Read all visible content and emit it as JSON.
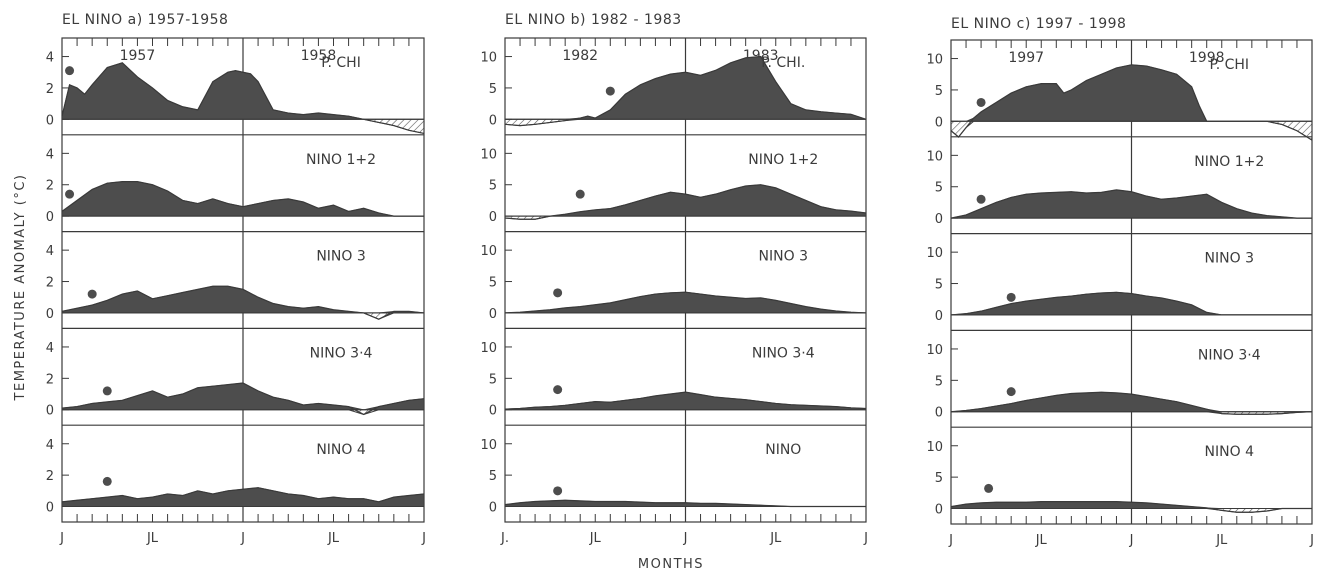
{
  "figure": {
    "ylabel": "TEMPERATURE ANOMALY (°C)",
    "xlabel": "MONTHS",
    "colors": {
      "fill": "#4d4d4d",
      "line": "#3a3a3a",
      "hatch": "#555555"
    }
  },
  "chart_data": [
    {
      "type": "area",
      "title": "EL NINO  a) 1957-1958",
      "years": [
        "1957",
        "1958"
      ],
      "x_tick_labels": [
        "J",
        "JL",
        "J",
        "JL",
        "J"
      ],
      "x_months": 24,
      "ylim": [
        0,
        4
      ],
      "y_ticks": [
        "0",
        "2",
        "4"
      ],
      "panel_top_value": 4.8,
      "series": [
        {
          "name": "P. CHI",
          "label": "P. CHI",
          "dot": [
            0.5,
            3.1
          ],
          "x": [
            0,
            0.5,
            1,
            1.5,
            2,
            3,
            4,
            5,
            6,
            7,
            8,
            9,
            10,
            11,
            11.5,
            12,
            12.5,
            13,
            14,
            15,
            16,
            17,
            18,
            19,
            20,
            21,
            22,
            23,
            24
          ],
          "y": [
            0.2,
            2.2,
            2.0,
            1.6,
            2.2,
            3.3,
            3.6,
            2.7,
            2.0,
            1.2,
            0.8,
            0.6,
            2.4,
            3.0,
            3.1,
            3.0,
            2.9,
            2.4,
            0.6,
            0.4,
            0.3,
            0.4,
            0.3,
            0.2,
            0,
            -0.2,
            -0.4,
            -0.7,
            -0.9
          ]
        },
        {
          "name": "NINO 1+2",
          "label": "NINO 1+2",
          "dot": [
            0.5,
            1.4
          ],
          "x": [
            0,
            1,
            2,
            3,
            4,
            5,
            6,
            7,
            8,
            9,
            10,
            11,
            12,
            13,
            14,
            15,
            16,
            17,
            18,
            19,
            20,
            21,
            22,
            23,
            24
          ],
          "y": [
            0.3,
            1.0,
            1.7,
            2.1,
            2.2,
            2.2,
            2.0,
            1.6,
            1.0,
            0.8,
            1.1,
            0.8,
            0.6,
            0.8,
            1.0,
            1.1,
            0.9,
            0.5,
            0.7,
            0.3,
            0.5,
            0.2,
            0,
            0,
            0
          ]
        },
        {
          "name": "NINO 3",
          "label": "NINO 3",
          "dot": [
            2,
            1.2
          ],
          "x": [
            0,
            1,
            2,
            3,
            4,
            5,
            6,
            7,
            8,
            9,
            10,
            11,
            12,
            13,
            14,
            15,
            16,
            17,
            18,
            19,
            20,
            21,
            22,
            23,
            24
          ],
          "y": [
            0.1,
            0.3,
            0.5,
            0.8,
            1.2,
            1.4,
            0.9,
            1.1,
            1.3,
            1.5,
            1.7,
            1.7,
            1.5,
            1.0,
            0.6,
            0.4,
            0.3,
            0.4,
            0.2,
            0.1,
            0.0,
            -0.4,
            0.1,
            0.1,
            0.0
          ]
        },
        {
          "name": "NINO 3·4",
          "label": "NINO 3·4",
          "dot": [
            3,
            1.2
          ],
          "x": [
            0,
            1,
            2,
            3,
            4,
            5,
            6,
            7,
            8,
            9,
            10,
            11,
            12,
            13,
            14,
            15,
            16,
            17,
            18,
            19,
            20,
            21,
            22,
            23,
            24
          ],
          "y": [
            0.1,
            0.2,
            0.4,
            0.5,
            0.6,
            0.9,
            1.2,
            0.8,
            1.0,
            1.4,
            1.5,
            1.6,
            1.7,
            1.2,
            0.8,
            0.6,
            0.3,
            0.4,
            0.3,
            0.2,
            -0.3,
            0.2,
            0.4,
            0.6,
            0.7
          ]
        },
        {
          "name": "NINO 4",
          "label": "NINO 4",
          "dot": [
            3,
            1.6
          ],
          "x": [
            0,
            1,
            2,
            3,
            4,
            5,
            6,
            7,
            8,
            9,
            10,
            11,
            12,
            13,
            14,
            15,
            16,
            17,
            18,
            19,
            20,
            21,
            22,
            23,
            24
          ],
          "y": [
            0.3,
            0.4,
            0.5,
            0.6,
            0.7,
            0.5,
            0.6,
            0.8,
            0.7,
            1.0,
            0.8,
            1.0,
            1.1,
            1.2,
            1.0,
            0.8,
            0.7,
            0.5,
            0.6,
            0.5,
            0.5,
            0.3,
            0.6,
            0.7,
            0.8
          ]
        }
      ]
    },
    {
      "type": "area",
      "title": "EL NINO  b) 1982 - 1983",
      "years": [
        "1982",
        "1983"
      ],
      "x_tick_labels": [
        "J.",
        "JL",
        "J",
        "JL",
        "J"
      ],
      "x_months": 24,
      "ylim": [
        0,
        10
      ],
      "y_ticks": [
        "0",
        "5",
        "10"
      ],
      "panel_top_value": 12,
      "series": [
        {
          "name": "P. CHI.",
          "label": "P. CHI.",
          "dot": [
            7,
            4.5
          ],
          "x": [
            0,
            1,
            2,
            3,
            4,
            5,
            5.5,
            6,
            7,
            8,
            9,
            10,
            11,
            12,
            13,
            14,
            15,
            16,
            17,
            18,
            19,
            20,
            21,
            22,
            23,
            24
          ],
          "y": [
            -0.8,
            -1.0,
            -0.8,
            -0.5,
            -0.2,
            0.2,
            0.5,
            0.2,
            1.5,
            4.0,
            5.5,
            6.5,
            7.2,
            7.5,
            7.0,
            7.8,
            9.0,
            9.8,
            10.0,
            6.0,
            2.5,
            1.5,
            1.2,
            1.0,
            0.8,
            0.0
          ]
        },
        {
          "name": "NINO 1+2",
          "label": "NINO 1+2",
          "dot": [
            5,
            3.5
          ],
          "x": [
            0,
            1,
            2,
            3,
            4,
            5,
            6,
            7,
            8,
            9,
            10,
            11,
            12,
            13,
            14,
            15,
            16,
            17,
            18,
            19,
            20,
            21,
            22,
            23,
            24
          ],
          "y": [
            -0.3,
            -0.5,
            -0.5,
            0.0,
            0.3,
            0.7,
            1.0,
            1.2,
            1.8,
            2.5,
            3.2,
            3.8,
            3.5,
            3.0,
            3.5,
            4.2,
            4.8,
            5.0,
            4.5,
            3.5,
            2.5,
            1.5,
            1.0,
            0.8,
            0.5
          ]
        },
        {
          "name": "NINO 3",
          "label": "NINO 3",
          "dot": [
            3.5,
            3.2
          ],
          "x": [
            0,
            1,
            2,
            3,
            4,
            5,
            6,
            7,
            8,
            9,
            10,
            11,
            12,
            13,
            14,
            15,
            16,
            17,
            18,
            19,
            20,
            21,
            22,
            23,
            24
          ],
          "y": [
            0.0,
            0.1,
            0.3,
            0.5,
            0.8,
            1.0,
            1.3,
            1.6,
            2.1,
            2.6,
            3.0,
            3.2,
            3.3,
            3.0,
            2.7,
            2.5,
            2.3,
            2.4,
            2.0,
            1.5,
            1.0,
            0.6,
            0.3,
            0.1,
            0.0
          ]
        },
        {
          "name": "NINO 3·4",
          "label": "NINO 3·4",
          "dot": [
            3.5,
            3.2
          ],
          "x": [
            0,
            1,
            2,
            3,
            4,
            5,
            6,
            7,
            8,
            9,
            10,
            11,
            12,
            13,
            14,
            15,
            16,
            17,
            18,
            19,
            20,
            21,
            22,
            23,
            24
          ],
          "y": [
            0.1,
            0.2,
            0.4,
            0.5,
            0.7,
            1.0,
            1.3,
            1.2,
            1.5,
            1.8,
            2.2,
            2.5,
            2.8,
            2.4,
            2.0,
            1.8,
            1.6,
            1.3,
            1.0,
            0.8,
            0.7,
            0.6,
            0.5,
            0.3,
            0.2
          ]
        },
        {
          "name": "NINO",
          "label": "NINO",
          "dot": [
            3.5,
            2.5
          ],
          "x": [
            0,
            1,
            2,
            3,
            4,
            5,
            6,
            7,
            8,
            9,
            10,
            11,
            12,
            13,
            14,
            15,
            16,
            17,
            18,
            19,
            20,
            21,
            22,
            23,
            24
          ],
          "y": [
            0.3,
            0.6,
            0.8,
            0.9,
            1.0,
            0.9,
            0.8,
            0.8,
            0.8,
            0.7,
            0.6,
            0.6,
            0.6,
            0.5,
            0.5,
            0.4,
            0.3,
            0.2,
            0.1,
            0.0,
            0.0,
            0.0,
            0.0,
            0.0,
            0.0
          ]
        }
      ]
    },
    {
      "type": "area",
      "title": "EL NINO  c) 1997 - 1998",
      "years": [
        "1997",
        "1998"
      ],
      "x_tick_labels": [
        "J",
        "JL",
        "J",
        "JL",
        "J"
      ],
      "x_months": 24,
      "ylim": [
        0,
        10
      ],
      "y_ticks": [
        "0",
        "5",
        "10"
      ],
      "panel_top_value": 12,
      "series": [
        {
          "name": "P. CHI",
          "label": "P. CHI",
          "dot": [
            2,
            3
          ],
          "x": [
            0,
            0.5,
            1,
            1.5,
            2,
            3,
            4,
            5,
            6,
            7,
            7.5,
            8,
            9,
            10,
            11,
            12,
            13,
            14,
            15,
            16,
            16.5,
            17,
            18,
            19,
            20,
            21,
            22,
            23,
            24
          ],
          "y": [
            -1.5,
            -2.5,
            -1.0,
            0.5,
            1.5,
            3.0,
            4.5,
            5.5,
            6.0,
            6.0,
            4.5,
            5.0,
            6.5,
            7.5,
            8.5,
            9.0,
            8.8,
            8.2,
            7.5,
            5.5,
            2.5,
            0.0,
            0.0,
            0.0,
            0.0,
            0.0,
            -0.5,
            -1.5,
            -3.0
          ]
        },
        {
          "name": "NINO 1+2",
          "label": "NINO 1+2",
          "dot": [
            2,
            3
          ],
          "x": [
            0,
            1,
            2,
            3,
            4,
            5,
            6,
            7,
            8,
            9,
            10,
            11,
            12,
            13,
            14,
            15,
            16,
            17,
            18,
            19,
            20,
            21,
            22,
            23,
            24
          ],
          "y": [
            0.0,
            0.5,
            1.5,
            2.5,
            3.3,
            3.8,
            4.0,
            4.1,
            4.2,
            4.0,
            4.1,
            4.5,
            4.2,
            3.5,
            3.0,
            3.2,
            3.5,
            3.8,
            2.5,
            1.5,
            0.8,
            0.4,
            0.2,
            0.0,
            0.0
          ]
        },
        {
          "name": "NINO 3",
          "label": "NINO 3",
          "dot": [
            4,
            2.8
          ],
          "x": [
            0,
            1,
            2,
            3,
            4,
            5,
            6,
            7,
            8,
            9,
            10,
            11,
            12,
            13,
            14,
            15,
            16,
            17,
            18,
            19,
            20,
            21,
            22,
            23,
            24
          ],
          "y": [
            0.0,
            0.2,
            0.6,
            1.2,
            1.8,
            2.2,
            2.5,
            2.8,
            3.0,
            3.3,
            3.5,
            3.6,
            3.4,
            3.0,
            2.7,
            2.2,
            1.6,
            0.4,
            0.0,
            0.0,
            0.0,
            0.0,
            0.0,
            0.0,
            0.0
          ]
        },
        {
          "name": "NINO 3·4",
          "label": "NINO 3·4",
          "dot": [
            4,
            3.2
          ],
          "x": [
            0,
            1,
            2,
            3,
            4,
            5,
            6,
            7,
            8,
            9,
            10,
            11,
            12,
            13,
            14,
            15,
            16,
            17,
            18,
            19,
            20,
            21,
            22,
            23,
            24
          ],
          "y": [
            0.0,
            0.2,
            0.5,
            0.9,
            1.3,
            1.8,
            2.2,
            2.6,
            2.9,
            3.0,
            3.1,
            3.0,
            2.8,
            2.4,
            2.0,
            1.6,
            1.0,
            0.4,
            -0.3,
            -0.4,
            -0.4,
            -0.4,
            -0.3,
            -0.1,
            0.0
          ]
        },
        {
          "name": "NINO 4",
          "label": "NINO 4",
          "dot": [
            2.5,
            3.2
          ],
          "x": [
            0,
            1,
            2,
            3,
            4,
            5,
            6,
            7,
            8,
            9,
            10,
            11,
            12,
            13,
            14,
            15,
            16,
            17,
            18,
            19,
            20,
            21,
            22,
            23,
            24
          ],
          "y": [
            0.3,
            0.7,
            0.9,
            1.0,
            1.0,
            1.0,
            1.1,
            1.1,
            1.1,
            1.1,
            1.1,
            1.1,
            1.0,
            0.9,
            0.7,
            0.5,
            0.3,
            0.1,
            -0.3,
            -0.6,
            -0.6,
            -0.4,
            0.0,
            0.0,
            0.0
          ]
        }
      ]
    }
  ]
}
